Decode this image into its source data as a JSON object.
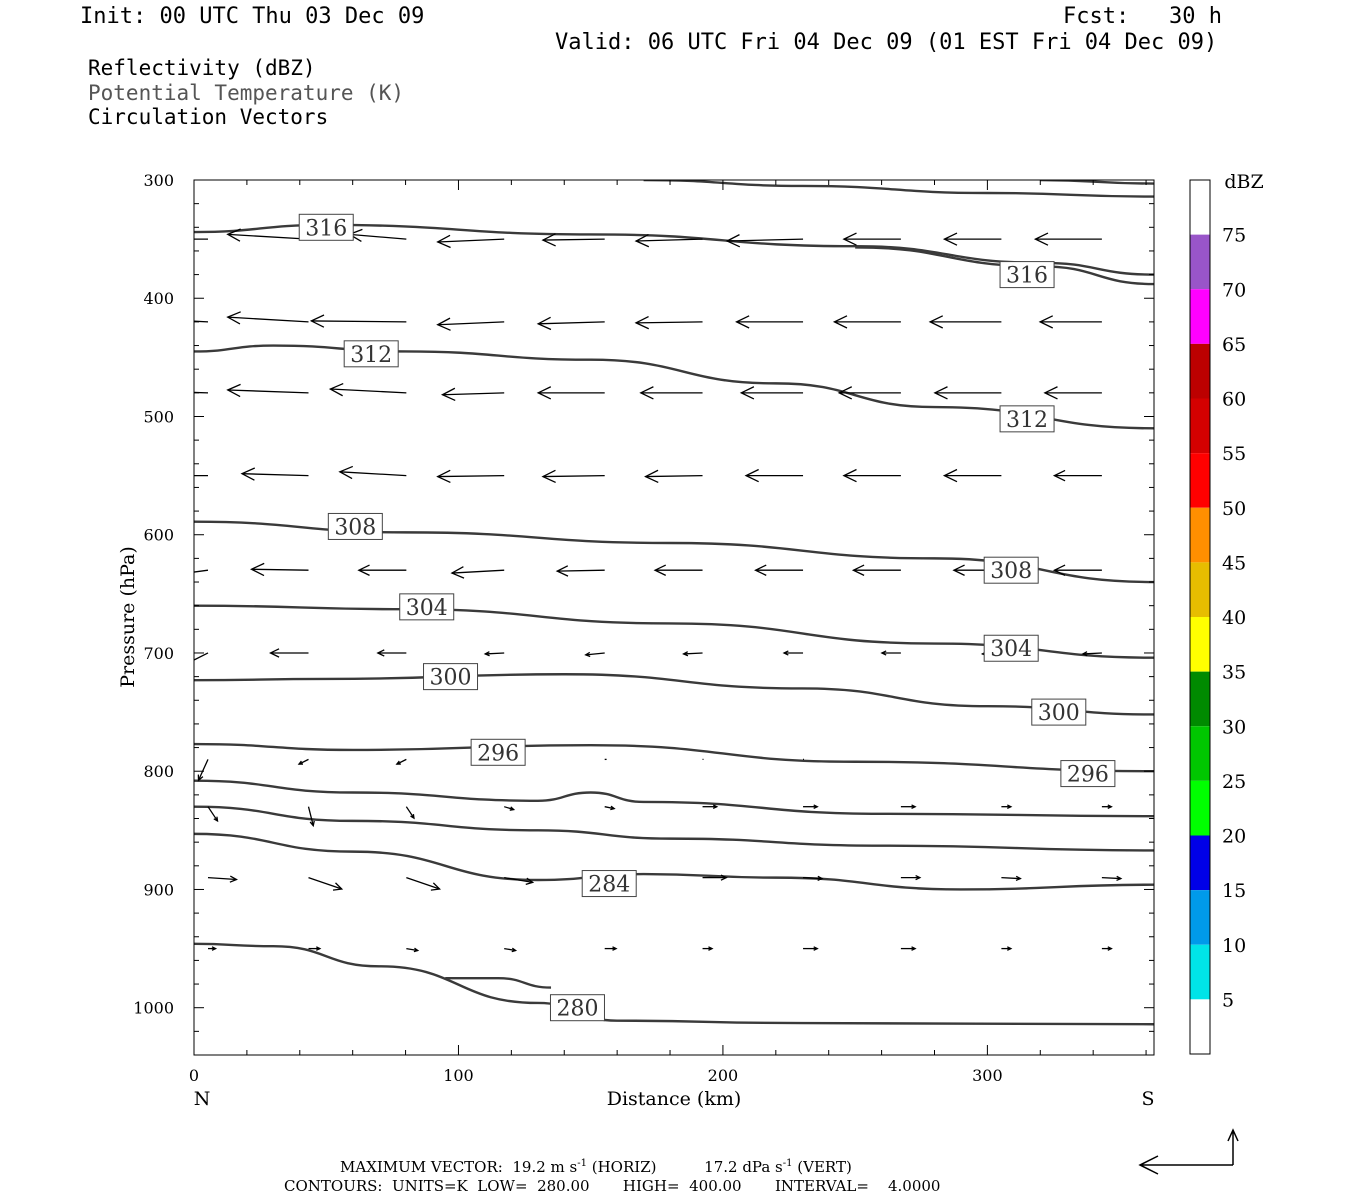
{
  "header": {
    "init": "Init: 00 UTC Thu 03 Dec 09",
    "fcst": "Fcst:   30 h",
    "valid": "Valid: 06 UTC Fri 04 Dec 09 (01 EST Fri 04 Dec 09)"
  },
  "legend": {
    "line1": "Reflectivity (dBZ)",
    "line2": "Potential Temperature (K)",
    "line3": "Circulation Vectors"
  },
  "chart_data": {
    "type": "line",
    "xlabel": "Distance (km)",
    "ylabel": "Pressure (hPa)",
    "xlim": [
      0,
      363
    ],
    "ylim": [
      300,
      1040
    ],
    "y_scale": "linear-inverted",
    "x_ticks": [
      0,
      100,
      200,
      300
    ],
    "y_ticks": [
      300,
      400,
      500,
      600,
      700,
      800,
      900,
      1000
    ],
    "x_end_labels": {
      "left": "N",
      "right": "S"
    },
    "contour_labels": [
      {
        "text": "316",
        "x": 50,
        "y": 340
      },
      {
        "text": "316",
        "x": 315,
        "y": 380
      },
      {
        "text": "312",
        "x": 67,
        "y": 447
      },
      {
        "text": "312",
        "x": 315,
        "y": 502
      },
      {
        "text": "308",
        "x": 61,
        "y": 593
      },
      {
        "text": "308",
        "x": 309,
        "y": 630
      },
      {
        "text": "304",
        "x": 88,
        "y": 661
      },
      {
        "text": "304",
        "x": 309,
        "y": 696
      },
      {
        "text": "300",
        "x": 97,
        "y": 720
      },
      {
        "text": "300",
        "x": 327,
        "y": 750
      },
      {
        "text": "296",
        "x": 115,
        "y": 784
      },
      {
        "text": "296",
        "x": 338,
        "y": 802
      },
      {
        "text": "284",
        "x": 157,
        "y": 895
      },
      {
        "text": "280",
        "x": 145,
        "y": 1000
      }
    ],
    "series": [
      {
        "values": [
          [
            0,
            344
          ],
          [
            50,
            338
          ],
          [
            150,
            346
          ],
          [
            250,
            356
          ],
          [
            320,
            370
          ],
          [
            363,
            380
          ]
        ]
      },
      {
        "values": [
          [
            170,
            300
          ],
          [
            230,
            305
          ],
          [
            300,
            311
          ],
          [
            363,
            314
          ]
        ]
      },
      {
        "values": [
          [
            320,
            300
          ],
          [
            363,
            303
          ]
        ]
      },
      {
        "values": [
          [
            250,
            357
          ],
          [
            320,
            373
          ],
          [
            363,
            388
          ]
        ]
      },
      {
        "values": [
          [
            0,
            445
          ],
          [
            30,
            440
          ],
          [
            80,
            445
          ],
          [
            150,
            452
          ],
          [
            220,
            472
          ],
          [
            280,
            492
          ],
          [
            363,
            510
          ]
        ]
      },
      {
        "values": [
          [
            0,
            589
          ],
          [
            80,
            598
          ],
          [
            180,
            607
          ],
          [
            280,
            620
          ],
          [
            363,
            640
          ]
        ]
      },
      {
        "values": [
          [
            0,
            660
          ],
          [
            80,
            663
          ],
          [
            180,
            675
          ],
          [
            280,
            692
          ],
          [
            363,
            704
          ]
        ]
      },
      {
        "values": [
          [
            0,
            723
          ],
          [
            50,
            722
          ],
          [
            140,
            718
          ],
          [
            230,
            730
          ],
          [
            300,
            745
          ],
          [
            363,
            752
          ]
        ]
      },
      {
        "values": [
          [
            0,
            777
          ],
          [
            60,
            782
          ],
          [
            150,
            778
          ],
          [
            250,
            792
          ],
          [
            363,
            800
          ]
        ]
      },
      {
        "values": [
          [
            0,
            808
          ],
          [
            60,
            818
          ],
          [
            130,
            825
          ],
          [
            150,
            818
          ],
          [
            170,
            826
          ],
          [
            260,
            836
          ],
          [
            363,
            838
          ]
        ]
      },
      {
        "values": [
          [
            0,
            830
          ],
          [
            60,
            842
          ],
          [
            130,
            850
          ],
          [
            180,
            857
          ],
          [
            260,
            863
          ],
          [
            363,
            867
          ]
        ]
      },
      {
        "values": [
          [
            0,
            853
          ],
          [
            60,
            868
          ],
          [
            130,
            892
          ],
          [
            170,
            887
          ],
          [
            220,
            890
          ],
          [
            290,
            900
          ],
          [
            363,
            896
          ]
        ]
      },
      {
        "values": [
          [
            0,
            946
          ],
          [
            30,
            948
          ],
          [
            70,
            965
          ],
          [
            130,
            996
          ],
          [
            160,
            1011
          ],
          [
            230,
            1013
          ],
          [
            363,
            1014
          ]
        ]
      },
      {
        "values": [
          [
            95,
            975
          ],
          [
            115,
            975
          ],
          [
            135,
            983
          ]
        ]
      }
    ],
    "vectors_note_none": "",
    "colorbar": {
      "title": "dBZ",
      "labels": [
        "5",
        "10",
        "15",
        "20",
        "25",
        "30",
        "35",
        "40",
        "45",
        "50",
        "55",
        "60",
        "65",
        "70",
        "75"
      ],
      "colors": [
        "#ffffff",
        "#00e4e8",
        "#009aea",
        "#0000e8",
        "#00ff00",
        "#00c600",
        "#008a00",
        "#ffff00",
        "#e7bd00",
        "#ff8f00",
        "#ff0000",
        "#d40000",
        "#bc0000",
        "#ff00ff",
        "#9955c9",
        "#ffffff"
      ]
    },
    "arrow_rows": [
      {
        "p": 350,
        "x": [
          0,
          38,
          75,
          112,
          150,
          187,
          225,
          262,
          300,
          338
        ],
        "u": [
          -1,
          -0.85,
          -0.6,
          -0.7,
          -0.65,
          -0.7,
          -0.8,
          -0.6,
          -0.6,
          -0.7
        ],
        "w": [
          0,
          0.05,
          0.05,
          -0.03,
          -0.01,
          -0.02,
          -0.02,
          0,
          0,
          0
        ]
      },
      {
        "p": 420,
        "x": [
          0,
          38,
          75,
          112,
          150,
          187,
          225,
          262,
          300,
          338
        ],
        "u": [
          -1,
          -0.85,
          -1,
          -0.7,
          -0.7,
          -0.7,
          -0.7,
          -0.7,
          -0.75,
          -0.65
        ],
        "w": [
          0.05,
          0.05,
          0.01,
          -0.03,
          -0.02,
          -0.01,
          0,
          0,
          0,
          0
        ]
      },
      {
        "p": 480,
        "x": [
          0,
          38,
          75,
          112,
          150,
          187,
          225,
          262,
          300,
          338
        ],
        "u": [
          -1,
          -0.85,
          -0.8,
          -0.65,
          -0.7,
          -0.65,
          -0.65,
          -0.65,
          -0.7,
          -0.6
        ],
        "w": [
          0.03,
          0.03,
          0.04,
          -0.02,
          0,
          0,
          0,
          0,
          0,
          0
        ]
      },
      {
        "p": 550,
        "x": [
          0,
          38,
          75,
          112,
          150,
          187,
          225,
          262,
          300,
          338
        ],
        "u": [
          -0.75,
          -0.7,
          -0.7,
          -0.7,
          -0.65,
          -0.6,
          -0.6,
          -0.6,
          -0.6,
          -0.5
        ],
        "w": [
          0,
          0.02,
          0.04,
          -0.01,
          -0.01,
          -0.01,
          0,
          0,
          0,
          0
        ]
      },
      {
        "p": 630,
        "x": [
          0,
          38,
          75,
          112,
          150,
          187,
          225,
          262,
          300,
          338
        ],
        "u": [
          -0.6,
          -0.6,
          -0.5,
          -0.55,
          -0.5,
          -0.5,
          -0.5,
          -0.5,
          -0.5,
          -0.5
        ],
        "w": [
          -0.08,
          0.01,
          0,
          -0.03,
          -0.01,
          0,
          0,
          0,
          0,
          0
        ]
      },
      {
        "p": 700,
        "x": [
          0,
          38,
          75,
          112,
          150,
          187,
          225,
          262,
          300,
          338
        ],
        "u": [
          -0.4,
          -0.4,
          -0.3,
          -0.2,
          -0.2,
          -0.2,
          -0.2,
          -0.2,
          -0.2,
          -0.2
        ],
        "w": [
          -0.2,
          0,
          0,
          -0.01,
          -0.02,
          -0.01,
          0,
          0,
          -0.01,
          -0.01
        ]
      },
      {
        "p": 790,
        "x": [
          0,
          38,
          75,
          112,
          150,
          187,
          225,
          262,
          300,
          338
        ],
        "u": [
          -0.1,
          -0.1,
          -0.1,
          -0.05,
          0.02,
          0.01,
          0.01,
          0,
          0,
          0
        ],
        "w": [
          -0.22,
          -0.05,
          -0.05,
          -0.02,
          0,
          0,
          0,
          0,
          0,
          0
        ]
      },
      {
        "p": 830,
        "x": [
          0,
          38,
          75,
          112,
          150,
          187,
          225,
          262,
          300,
          338
        ],
        "u": [
          0.1,
          0.05,
          0.08,
          0.1,
          0.1,
          0.15,
          0.15,
          0.15,
          0.1,
          0.1
        ],
        "w": [
          -0.15,
          -0.2,
          -0.12,
          -0.03,
          -0.02,
          0,
          0,
          0,
          0,
          0
        ]
      },
      {
        "p": 890,
        "x": [
          0,
          38,
          75,
          112,
          150,
          187,
          225,
          262,
          300,
          338
        ],
        "u": [
          0.3,
          0.35,
          0.35,
          0.3,
          0.3,
          0.25,
          0.2,
          0.2,
          0.2,
          0.2
        ],
        "w": [
          -0.02,
          -0.12,
          -0.12,
          -0.05,
          -0.03,
          0,
          -0.01,
          0,
          -0.01,
          -0.01
        ]
      },
      {
        "p": 950,
        "x": [
          0,
          38,
          75,
          112,
          150,
          187,
          225,
          262,
          300,
          338
        ],
        "u": [
          0.08,
          0.12,
          0.12,
          0.12,
          0.12,
          0.1,
          0.15,
          0.15,
          0.1,
          0.1
        ],
        "w": [
          0,
          0,
          -0.02,
          -0.02,
          0,
          0,
          0,
          0,
          0,
          0
        ]
      }
    ]
  },
  "footer": {
    "line1": "MAXIMUM VECTOR:  19.2 m s",
    "line1_sup": "-1",
    "line1_b": " (HORIZ)          17.2 dPa s",
    "line1_b_sup": "-1",
    "line1_c": " (VERT)",
    "line2": "CONTOURS:  UNITS=K  LOW=  280.00       HIGH=  400.00       INTERVAL=    4.0000"
  }
}
